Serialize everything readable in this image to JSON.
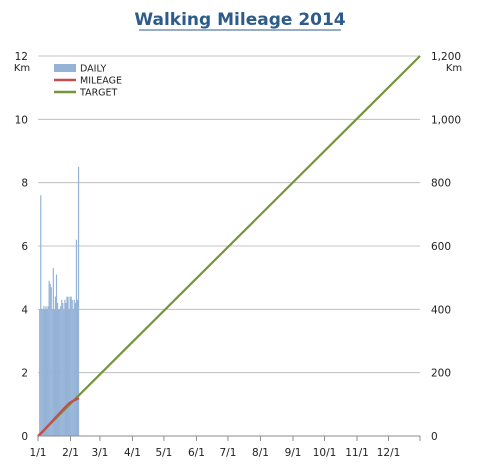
{
  "chart_data": {
    "type": "bar+line",
    "title": "Walking  Mileage  2014",
    "left_axis": {
      "unit": "Km",
      "ylim": [
        0,
        12
      ],
      "ticks": [
        0,
        2,
        4,
        6,
        8,
        10,
        12
      ],
      "tick_labels": [
        "0",
        "2",
        "4",
        "6",
        "8",
        "10",
        "12"
      ]
    },
    "right_axis": {
      "unit": "Km",
      "ylim": [
        0,
        1200
      ],
      "ticks": [
        0,
        200,
        400,
        600,
        800,
        1000,
        1200
      ],
      "tick_labels": [
        "0",
        "200",
        "400",
        "600",
        "800",
        "1,000",
        "1,200"
      ]
    },
    "x_axis": {
      "range": [
        "2014-01-01",
        "2014-12-31"
      ],
      "tick_dates": [
        "2014-01-01",
        "2014-02-01",
        "2014-03-01",
        "2014-04-01",
        "2014-05-01",
        "2014-06-01",
        "2014-07-01",
        "2014-08-01",
        "2014-09-01",
        "2014-10-01",
        "2014-11-01",
        "2014-12-01"
      ],
      "tick_labels": [
        "1/1",
        "2/1",
        "3/1",
        "4/1",
        "5/1",
        "6/1",
        "7/1",
        "8/1",
        "9/1",
        "10/1",
        "11/1",
        "12/1"
      ]
    },
    "grid": "horizontal",
    "legend_placement": "top-left",
    "series": [
      {
        "name": "DAILY",
        "kind": "bar",
        "axis": "left",
        "color": "#95b3d7",
        "x": [
          "2014-01-03",
          "2014-01-04",
          "2014-01-05",
          "2014-01-06",
          "2014-01-07",
          "2014-01-08",
          "2014-01-09",
          "2014-01-10",
          "2014-01-11",
          "2014-01-12",
          "2014-01-13",
          "2014-01-14",
          "2014-01-15",
          "2014-01-16",
          "2014-01-17",
          "2014-01-18",
          "2014-01-19",
          "2014-01-20",
          "2014-01-21",
          "2014-01-22",
          "2014-01-23",
          "2014-01-24",
          "2014-01-25",
          "2014-01-26",
          "2014-01-27",
          "2014-01-28",
          "2014-01-29",
          "2014-01-30",
          "2014-01-31",
          "2014-02-01",
          "2014-02-02",
          "2014-02-03",
          "2014-02-04",
          "2014-02-05",
          "2014-02-06",
          "2014-02-07",
          "2014-02-08",
          "2014-02-09"
        ],
        "values": [
          4.0,
          7.6,
          4.0,
          4.0,
          4.1,
          4.0,
          4.1,
          4.0,
          4.1,
          4.9,
          4.8,
          4.7,
          4.0,
          5.3,
          4.0,
          4.4,
          5.1,
          4.2,
          4.0,
          4.0,
          4.1,
          4.3,
          4.2,
          4.0,
          4.3,
          4.2,
          4.4,
          4.4,
          4.0,
          4.4,
          4.4,
          4.3,
          4.0,
          4.3,
          4.2,
          6.2,
          4.3,
          8.5
        ]
      },
      {
        "name": "MILEAGE",
        "kind": "line",
        "axis": "right",
        "color": "#c0504d",
        "x": [
          "2014-01-01",
          "2014-01-05",
          "2014-01-10",
          "2014-01-15",
          "2014-01-20",
          "2014-01-25",
          "2014-01-31",
          "2014-02-04",
          "2014-02-09"
        ],
        "values": [
          0,
          12,
          30,
          48,
          66,
          84,
          104,
          112,
          120
        ]
      },
      {
        "name": "TARGET",
        "kind": "line",
        "axis": "right",
        "color": "#77933c",
        "x": [
          "2014-01-01",
          "2014-12-31"
        ],
        "values": [
          0,
          1200
        ]
      }
    ]
  }
}
